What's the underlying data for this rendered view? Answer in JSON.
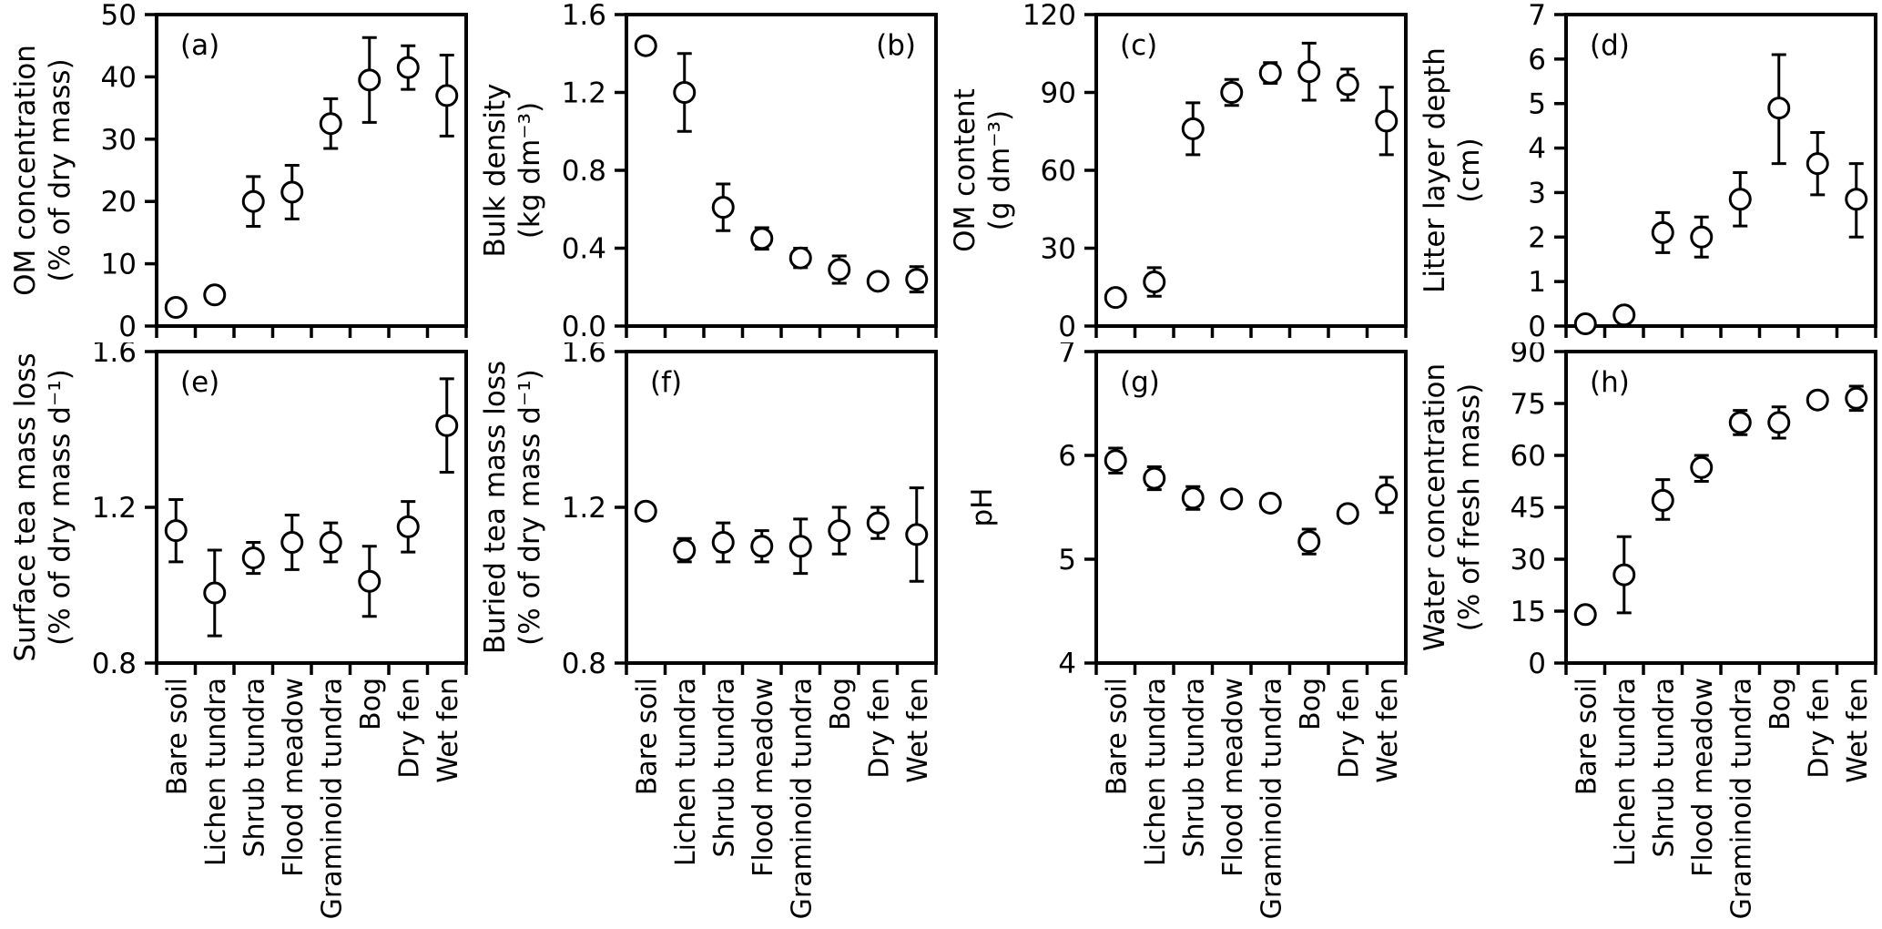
{
  "figure": {
    "background": "#ffffff",
    "stroke_color": "#000000",
    "marker": {
      "shape": "open-circle",
      "fill": "#ffffff",
      "stroke": "#000000"
    },
    "categories": [
      "Bare soil",
      "Lichen tundra",
      "Shrub tundra",
      "Flood meadow",
      "Graminoid tundra",
      "Bog",
      "Dry fen",
      "Wet fen"
    ]
  },
  "chart_data": [
    {
      "type": "scatter",
      "panel": "(a)",
      "panel_label_position": "top-left",
      "ylabel": "OM concentration (% of dry mass)",
      "ylabel_line1": "OM concentration",
      "ylabel_line2": "(% of dry mass)",
      "xlabel": "",
      "categories": [
        "Bare soil",
        "Lichen tundra",
        "Shrub tundra",
        "Flood meadow",
        "Graminoid tundra",
        "Bog",
        "Dry fen",
        "Wet fen"
      ],
      "values": [
        3,
        5,
        20,
        21.5,
        32.5,
        39.5,
        41.5,
        37
      ],
      "err_minus": [
        0,
        0,
        4,
        4.3,
        4,
        6.8,
        3.5,
        6.5
      ],
      "err_plus": [
        0,
        0,
        4,
        4.3,
        4,
        6.8,
        3.5,
        6.5
      ],
      "ylim": [
        0,
        50
      ],
      "yticks": [
        "0",
        "10",
        "20",
        "30",
        "40",
        "50"
      ]
    },
    {
      "type": "scatter",
      "panel": "(b)",
      "panel_label_position": "top-right",
      "ylabel": "Bulk density (kg dm⁻³)",
      "ylabel_line1": "Bulk density",
      "ylabel_line2": "(kg dm⁻³)",
      "xlabel": "",
      "categories": [
        "Bare soil",
        "Lichen tundra",
        "Shrub tundra",
        "Flood meadow",
        "Graminoid tundra",
        "Bog",
        "Dry fen",
        "Wet fen"
      ],
      "values": [
        1.44,
        1.2,
        0.61,
        0.45,
        0.35,
        0.29,
        0.23,
        0.24
      ],
      "err_minus": [
        0,
        0.2,
        0.12,
        0.055,
        0.05,
        0.07,
        0,
        0.065
      ],
      "err_plus": [
        0,
        0.2,
        0.12,
        0.055,
        0.05,
        0.07,
        0,
        0.065
      ],
      "ylim": [
        0,
        1.6
      ],
      "yticks": [
        "0.0",
        "0.4",
        "0.8",
        "1.2",
        "1.6"
      ]
    },
    {
      "type": "scatter",
      "panel": "(c)",
      "panel_label_position": "top-left",
      "ylabel": "OM content (g dm⁻³)",
      "ylabel_line1": "OM content",
      "ylabel_line2": "(g dm⁻³)",
      "xlabel": "",
      "categories": [
        "Bare soil",
        "Lichen tundra",
        "Shrub tundra",
        "Flood meadow",
        "Graminoid tundra",
        "Bog",
        "Dry fen",
        "Wet fen"
      ],
      "values": [
        11,
        17,
        76,
        90,
        97.5,
        98,
        93,
        79
      ],
      "err_minus": [
        0,
        5.5,
        10,
        5,
        4,
        11,
        6,
        13
      ],
      "err_plus": [
        0,
        5.5,
        10,
        5,
        4,
        11,
        6,
        13
      ],
      "ylim": [
        0,
        120
      ],
      "yticks": [
        "0",
        "30",
        "60",
        "90",
        "120"
      ]
    },
    {
      "type": "scatter",
      "panel": "(d)",
      "panel_label_position": "top-left",
      "ylabel": "Litter layer depth (cm)",
      "ylabel_line1": "Litter layer depth",
      "ylabel_line2": "(cm)",
      "xlabel": "",
      "categories": [
        "Bare soil",
        "Lichen tundra",
        "Shrub tundra",
        "Flood meadow",
        "Graminoid tundra",
        "Bog",
        "Dry fen",
        "Wet fen"
      ],
      "values": [
        0.05,
        0.25,
        2.1,
        2.0,
        2.85,
        4.9,
        3.65,
        2.85
      ],
      "err_minus": [
        0,
        0,
        0.45,
        0.45,
        0.6,
        1.25,
        0.7,
        0.85
      ],
      "err_plus": [
        0,
        0,
        0.45,
        0.45,
        0.6,
        1.2,
        0.7,
        0.8
      ],
      "ylim": [
        0,
        7
      ],
      "yticks": [
        "0",
        "1",
        "2",
        "3",
        "4",
        "5",
        "6",
        "7"
      ]
    },
    {
      "type": "scatter",
      "panel": "(e)",
      "panel_label_position": "top-left",
      "ylabel": "Surface tea mass loss (% of dry mass d⁻¹)",
      "ylabel_line1": "Surface tea mass loss",
      "ylabel_line2": "(% of dry mass d⁻¹)",
      "xlabel": "",
      "categories": [
        "Bare soil",
        "Lichen tundra",
        "Shrub tundra",
        "Flood meadow",
        "Graminoid tundra",
        "Bog",
        "Dry fen",
        "Wet fen"
      ],
      "values": [
        1.14,
        0.98,
        1.07,
        1.11,
        1.11,
        1.01,
        1.15,
        1.41
      ],
      "err_minus": [
        0.08,
        0.11,
        0.04,
        0.07,
        0.05,
        0.09,
        0.065,
        0.12
      ],
      "err_plus": [
        0.08,
        0.11,
        0.04,
        0.07,
        0.05,
        0.09,
        0.065,
        0.12
      ],
      "ylim": [
        0.8,
        1.6
      ],
      "yticks": [
        "0.8",
        "1.2",
        "1.6"
      ]
    },
    {
      "type": "scatter",
      "panel": "(f)",
      "panel_label_position": "top-left",
      "ylabel": "Buried tea mass loss (% of dry mass d⁻¹)",
      "ylabel_line1": "Buried tea mass loss",
      "ylabel_line2": "(% of dry mass d⁻¹)",
      "xlabel": "",
      "categories": [
        "Bare soil",
        "Lichen tundra",
        "Shrub tundra",
        "Flood meadow",
        "Graminoid tundra",
        "Bog",
        "Dry fen",
        "Wet fen"
      ],
      "values": [
        1.19,
        1.09,
        1.11,
        1.1,
        1.1,
        1.14,
        1.16,
        1.13
      ],
      "err_minus": [
        0,
        0.03,
        0.05,
        0.04,
        0.07,
        0.06,
        0.04,
        0.12
      ],
      "err_plus": [
        0,
        0.03,
        0.05,
        0.04,
        0.07,
        0.06,
        0.04,
        0.12
      ],
      "ylim": [
        0.8,
        1.6
      ],
      "yticks": [
        "0.8",
        "1.2",
        "1.6"
      ]
    },
    {
      "type": "scatter",
      "panel": "(g)",
      "panel_label_position": "top-left",
      "ylabel": "pH",
      "ylabel_line1": "pH",
      "ylabel_line2": "",
      "xlabel": "",
      "categories": [
        "Bare soil",
        "Lichen tundra",
        "Shrub tundra",
        "Flood meadow",
        "Graminoid tundra",
        "Bog",
        "Dry fen",
        "Wet fen"
      ],
      "values": [
        5.95,
        5.78,
        5.59,
        5.58,
        5.54,
        5.17,
        5.44,
        5.62
      ],
      "err_minus": [
        0.12,
        0.11,
        0.11,
        0,
        0,
        0.12,
        0,
        0.17
      ],
      "err_plus": [
        0.12,
        0.11,
        0.11,
        0,
        0,
        0.12,
        0,
        0.17
      ],
      "ylim": [
        4,
        7
      ],
      "yticks": [
        "4",
        "5",
        "6",
        "7"
      ]
    },
    {
      "type": "scatter",
      "panel": "(h)",
      "panel_label_position": "top-left",
      "ylabel": "Water concentration (% of fresh mass)",
      "ylabel_line1": "Water concentration",
      "ylabel_line2": "(% of fresh mass)",
      "xlabel": "",
      "categories": [
        "Bare soil",
        "Lichen tundra",
        "Shrub tundra",
        "Flood meadow",
        "Graminoid tundra",
        "Bog",
        "Dry fen",
        "Wet fen"
      ],
      "values": [
        14,
        25.5,
        47,
        56.5,
        69.5,
        69.5,
        76,
        76.5
      ],
      "err_minus": [
        0,
        11,
        5.5,
        4,
        3.5,
        4.5,
        0,
        3.5
      ],
      "err_plus": [
        0,
        11,
        6,
        3.5,
        3.5,
        4.5,
        0,
        3.5
      ],
      "ylim": [
        0,
        90
      ],
      "yticks": [
        "0",
        "15",
        "30",
        "45",
        "60",
        "75",
        "90"
      ]
    }
  ]
}
